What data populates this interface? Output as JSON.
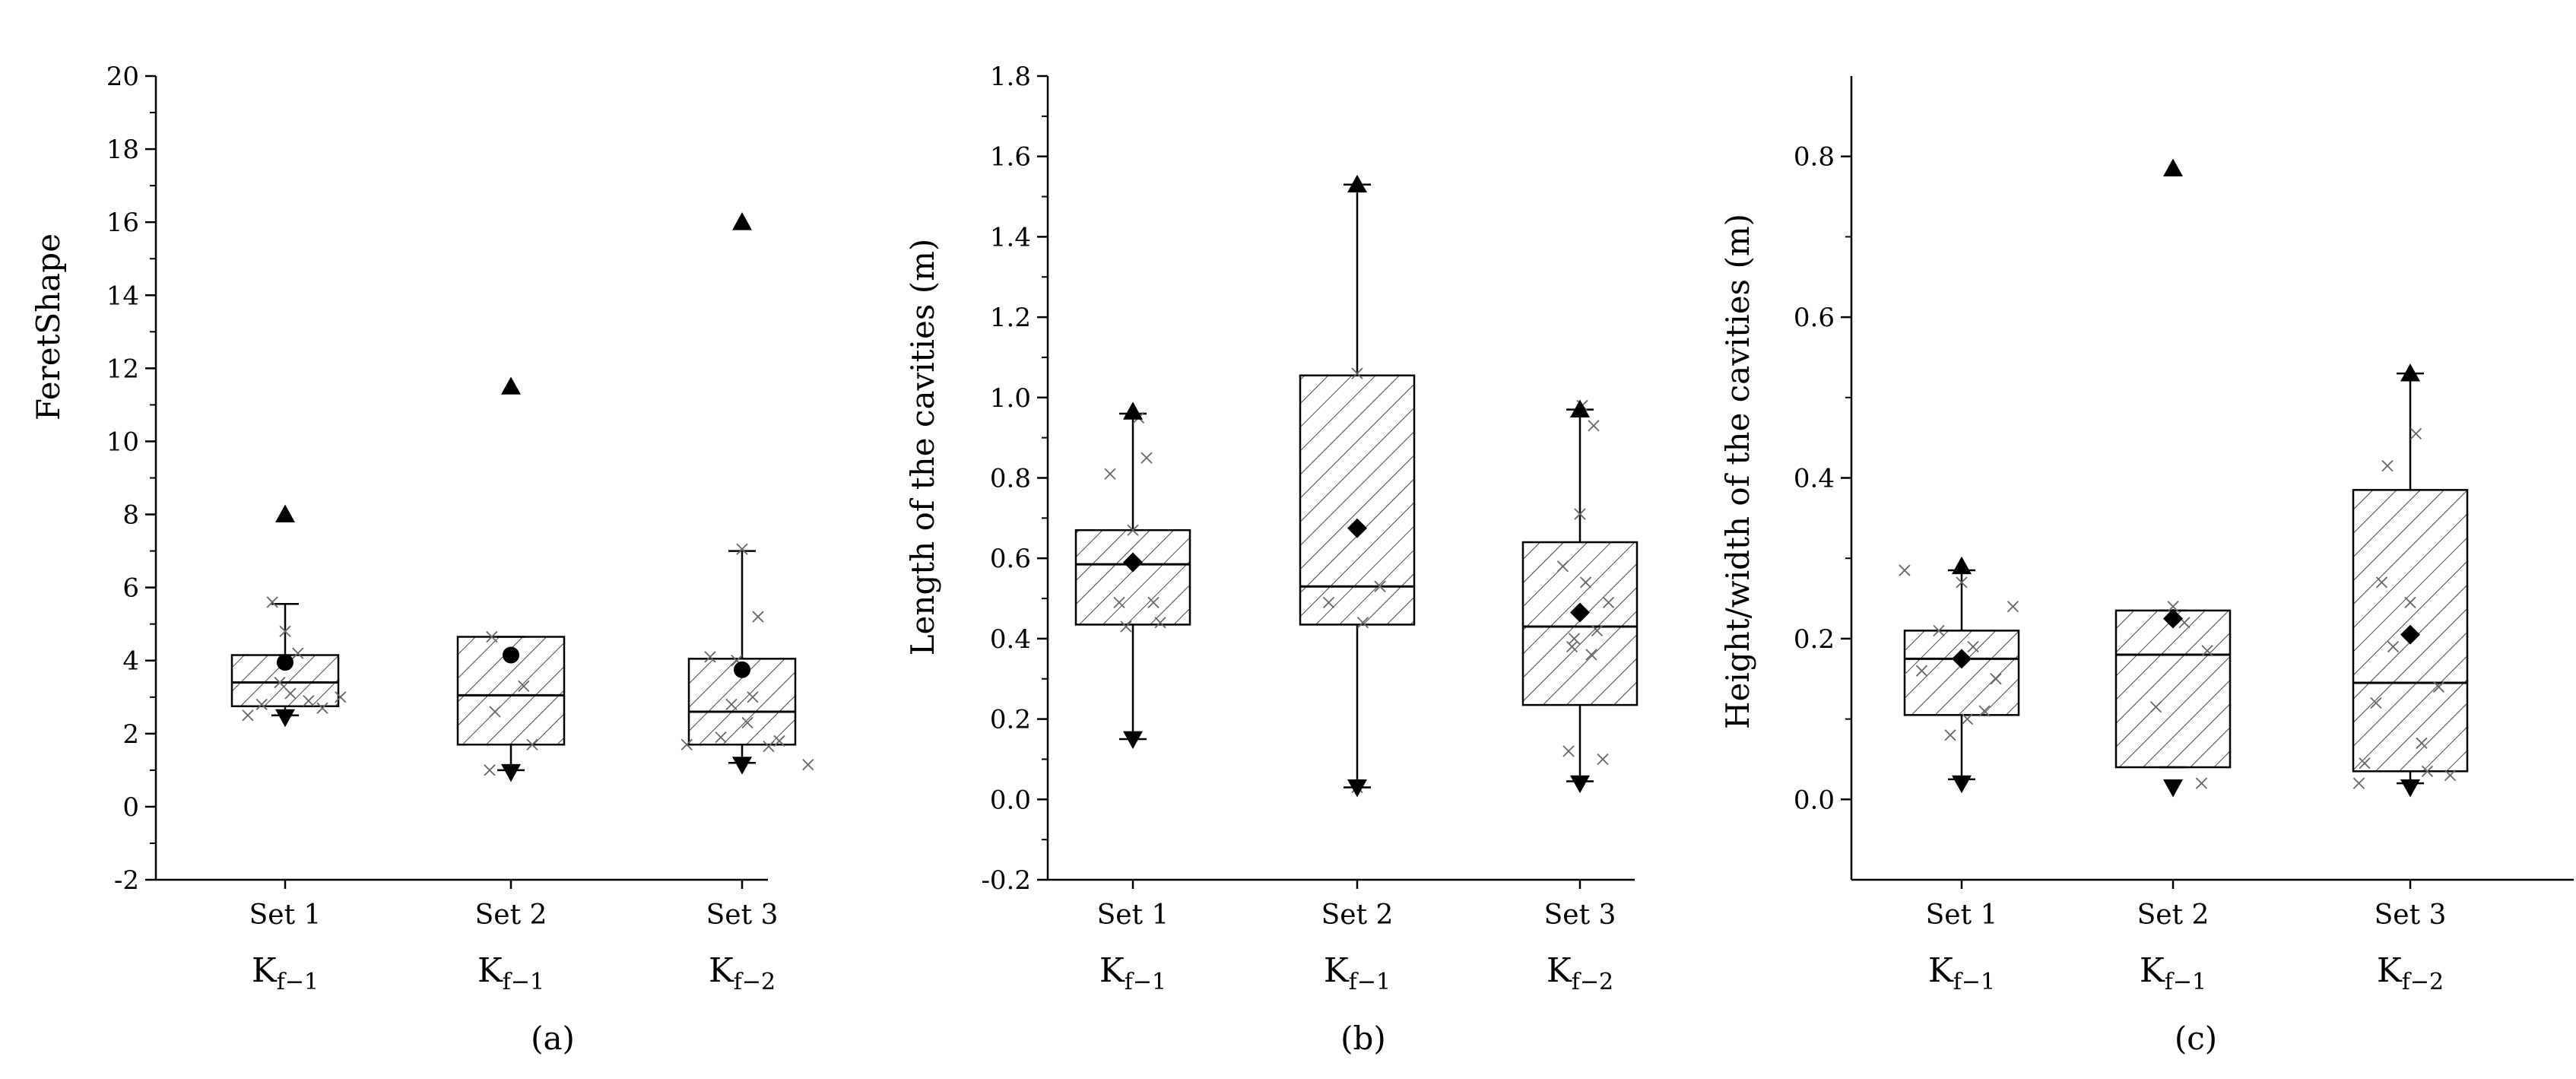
{
  "chart_data": [
    {
      "type": "box",
      "panel_label": "(a)",
      "title": "",
      "ylabel": "FeretShape",
      "xlabel": "",
      "ylim": [
        -2,
        20
      ],
      "yticks": [
        -2,
        0,
        2,
        4,
        6,
        8,
        10,
        12,
        14,
        16,
        18,
        20
      ],
      "ytick_labels": [
        "-2",
        "0",
        "2",
        "4",
        "6",
        "8",
        "10",
        "12",
        "14",
        "16",
        "18",
        "20"
      ],
      "mean_marker": "circle",
      "categories": [
        {
          "name": "Set 1",
          "kf": "K_{f−1}",
          "q1": 2.75,
          "median": 3.4,
          "q3": 4.15,
          "whisker_low": 2.5,
          "whisker_high": 5.55,
          "mean": 3.95,
          "max": 8.0,
          "min": 2.45,
          "points": [
            [
              -0.35,
              2.5
            ],
            [
              -0.22,
              2.8
            ],
            [
              -0.12,
              5.6
            ],
            [
              -0.05,
              3.4
            ],
            [
              0.0,
              4.8
            ],
            [
              0.05,
              3.1
            ],
            [
              0.12,
              4.2
            ],
            [
              0.22,
              2.9
            ],
            [
              0.35,
              2.7
            ],
            [
              0.52,
              3.0
            ]
          ]
        },
        {
          "name": "Set 2",
          "kf": "K_{f−1}",
          "q1": 1.7,
          "median": 3.05,
          "q3": 4.65,
          "whisker_low": 1.0,
          "whisker_high": 4.65,
          "mean": 4.15,
          "max": 11.5,
          "min": 0.95,
          "points": [
            [
              -0.2,
              1.0
            ],
            [
              -0.18,
              4.65
            ],
            [
              -0.15,
              2.6
            ],
            [
              0.2,
              1.7
            ],
            [
              0.12,
              3.3
            ]
          ]
        },
        {
          "name": "Set 3",
          "kf": "K_{f−2}",
          "q1": 1.7,
          "median": 2.6,
          "q3": 4.05,
          "whisker_low": 1.2,
          "whisker_high": 7.0,
          "mean": 3.75,
          "max": 16.0,
          "min": 1.15,
          "points": [
            [
              -0.52,
              1.7
            ],
            [
              -0.3,
              4.1
            ],
            [
              -0.2,
              1.9
            ],
            [
              -0.1,
              2.8
            ],
            [
              -0.05,
              4.0
            ],
            [
              0.0,
              7.05
            ],
            [
              0.05,
              2.3
            ],
            [
              0.1,
              3.0
            ],
            [
              0.15,
              5.2
            ],
            [
              0.25,
              1.65
            ],
            [
              0.35,
              1.8
            ],
            [
              0.62,
              1.15
            ]
          ]
        }
      ]
    },
    {
      "type": "box",
      "panel_label": "(b)",
      "title": "",
      "ylabel": "Length of the cavities (m)",
      "xlabel": "",
      "ylim": [
        -0.2,
        1.8
      ],
      "yticks": [
        -0.2,
        0.0,
        0.2,
        0.4,
        0.6,
        0.8,
        1.0,
        1.2,
        1.4,
        1.6,
        1.8
      ],
      "ytick_labels": [
        "-0.2",
        "0.0",
        "0.2",
        "0.4",
        "0.6",
        "0.8",
        "1.0",
        "1.2",
        "1.4",
        "1.6",
        "1.8"
      ],
      "mean_marker": "diamond",
      "categories": [
        {
          "name": "Set 1",
          "kf": "K_{f−1}",
          "q1": 0.435,
          "median": 0.585,
          "q3": 0.67,
          "whisker_low": 0.15,
          "whisker_high": 0.96,
          "mean": 0.59,
          "max": 0.965,
          "min": 0.15,
          "points": [
            [
              -0.2,
              0.81
            ],
            [
              -0.12,
              0.49
            ],
            [
              -0.06,
              0.43
            ],
            [
              0.0,
              0.67
            ],
            [
              0.05,
              0.95
            ],
            [
              0.12,
              0.85
            ],
            [
              0.18,
              0.49
            ],
            [
              0.24,
              0.44
            ]
          ]
        },
        {
          "name": "Set 2",
          "kf": "K_{f−1}",
          "q1": 0.435,
          "median": 0.53,
          "q3": 1.055,
          "whisker_low": 0.03,
          "whisker_high": 1.53,
          "mean": 0.675,
          "max": 1.53,
          "min": 0.03,
          "points": [
            [
              -0.25,
              0.49
            ],
            [
              0.0,
              1.06
            ],
            [
              0.05,
              0.44
            ],
            [
              0.2,
              0.53
            ],
            [
              0.0,
              0.03
            ]
          ]
        },
        {
          "name": "Set 3",
          "kf": "K_{f−2}",
          "q1": 0.235,
          "median": 0.43,
          "q3": 0.64,
          "whisker_low": 0.045,
          "whisker_high": 0.97,
          "mean": 0.465,
          "max": 0.97,
          "min": 0.04,
          "points": [
            [
              -0.15,
              0.58
            ],
            [
              -0.1,
              0.12
            ],
            [
              -0.07,
              0.38
            ],
            [
              -0.05,
              0.4
            ],
            [
              0.0,
              0.71
            ],
            [
              0.02,
              0.98
            ],
            [
              0.05,
              0.54
            ],
            [
              0.1,
              0.36
            ],
            [
              0.12,
              0.93
            ],
            [
              0.15,
              0.42
            ],
            [
              0.2,
              0.1
            ],
            [
              0.25,
              0.49
            ]
          ]
        }
      ]
    },
    {
      "type": "box",
      "panel_label": "(c)",
      "title": "",
      "ylabel": "Height/width of the cavities (m)",
      "xlabel": "",
      "ylim": [
        -0.1,
        0.9
      ],
      "yticks": [
        0.0,
        0.2,
        0.4,
        0.6,
        0.8
      ],
      "ytick_labels": [
        "0.0",
        "0.2",
        "0.4",
        "0.6",
        "0.8"
      ],
      "mean_marker": "diamond",
      "categories": [
        {
          "name": "Set 1",
          "kf": "K_{f−1}",
          "q1": 0.105,
          "median": 0.175,
          "q3": 0.21,
          "whisker_low": 0.025,
          "whisker_high": 0.285,
          "mean": 0.175,
          "max": 0.29,
          "min": 0.02,
          "points": [
            [
              -0.5,
              0.285
            ],
            [
              -0.35,
              0.16
            ],
            [
              -0.2,
              0.21
            ],
            [
              -0.1,
              0.08
            ],
            [
              0.0,
              0.27
            ],
            [
              0.05,
              0.1
            ],
            [
              0.1,
              0.19
            ],
            [
              0.2,
              0.11
            ],
            [
              0.3,
              0.15
            ],
            [
              0.45,
              0.24
            ]
          ]
        },
        {
          "name": "Set 2",
          "kf": "K_{f−1}",
          "q1": 0.04,
          "median": 0.18,
          "q3": 0.235,
          "whisker_low": 0.04,
          "whisker_high": 0.235,
          "mean": 0.225,
          "max": 0.785,
          "min": 0.015,
          "points": [
            [
              -0.15,
              0.115
            ],
            [
              0.0,
              0.24
            ],
            [
              0.1,
              0.22
            ],
            [
              0.25,
              0.02
            ],
            [
              0.3,
              0.185
            ]
          ]
        },
        {
          "name": "Set 3",
          "kf": "K_{f−2}",
          "q1": 0.035,
          "median": 0.145,
          "q3": 0.385,
          "whisker_low": 0.02,
          "whisker_high": 0.53,
          "mean": 0.205,
          "max": 0.53,
          "min": 0.015,
          "points": [
            [
              -0.45,
              0.02
            ],
            [
              -0.4,
              0.045
            ],
            [
              -0.3,
              0.12
            ],
            [
              -0.25,
              0.27
            ],
            [
              -0.2,
              0.415
            ],
            [
              -0.15,
              0.19
            ],
            [
              0.0,
              0.245
            ],
            [
              0.05,
              0.455
            ],
            [
              0.1,
              0.07
            ],
            [
              0.15,
              0.035
            ],
            [
              0.25,
              0.14
            ],
            [
              0.35,
              0.03
            ]
          ]
        }
      ]
    }
  ]
}
